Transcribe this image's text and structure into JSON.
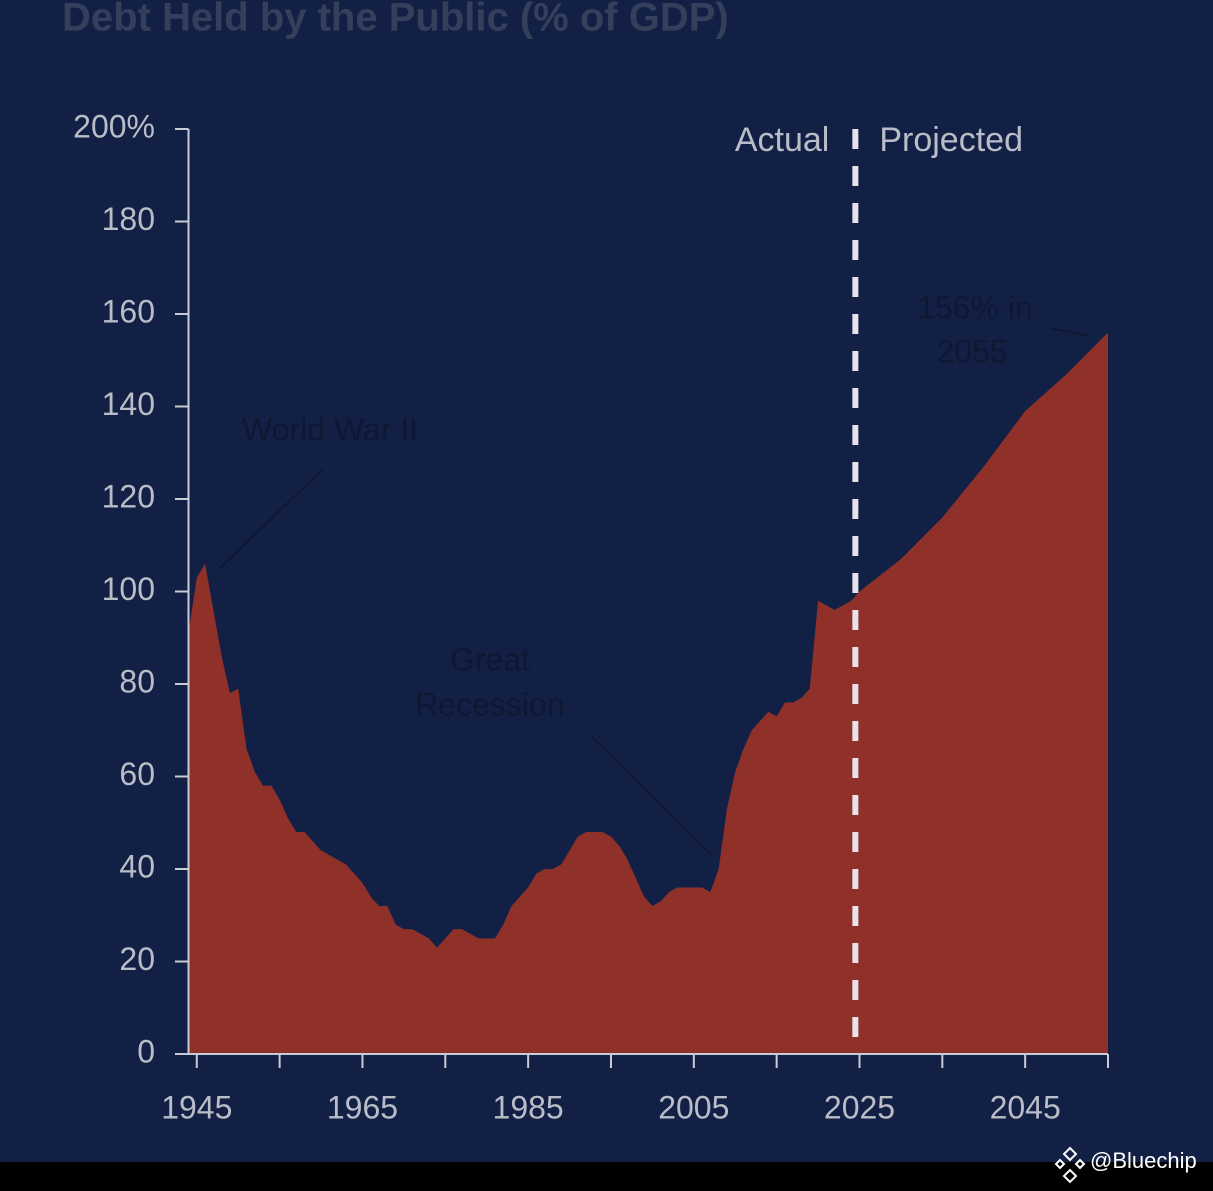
{
  "chart_data": {
    "type": "area",
    "title": "Debt Held by the Public (% of GDP)",
    "x": [
      1944,
      1945,
      1946,
      1947,
      1948,
      1949,
      1950,
      1951,
      1952,
      1953,
      1954,
      1955,
      1956,
      1957,
      1958,
      1959,
      1960,
      1961,
      1962,
      1963,
      1964,
      1965,
      1966,
      1967,
      1968,
      1969,
      1970,
      1971,
      1972,
      1973,
      1974,
      1975,
      1976,
      1977,
      1978,
      1979,
      1980,
      1981,
      1982,
      1983,
      1984,
      1985,
      1986,
      1987,
      1988,
      1989,
      1990,
      1991,
      1992,
      1993,
      1994,
      1995,
      1996,
      1997,
      1998,
      1999,
      2000,
      2001,
      2002,
      2003,
      2004,
      2005,
      2006,
      2007,
      2008,
      2009,
      2010,
      2011,
      2012,
      2013,
      2014,
      2015,
      2016,
      2017,
      2018,
      2019,
      2020,
      2021,
      2022,
      2023,
      2024,
      2025,
      2030,
      2035,
      2040,
      2045,
      2050,
      2055
    ],
    "values": [
      91,
      103,
      106,
      96,
      86,
      78,
      79,
      66,
      61,
      58,
      58,
      55,
      51,
      48,
      48,
      46,
      44,
      43,
      42,
      41,
      39,
      37,
      34,
      32,
      32,
      28,
      27,
      27,
      26,
      25,
      23,
      25,
      27,
      27,
      26,
      25,
      25,
      25,
      28,
      32,
      34,
      36,
      39,
      40,
      40,
      41,
      44,
      47,
      48,
      48,
      48,
      47,
      45,
      42,
      38,
      34,
      32,
      33,
      35,
      36,
      36,
      36,
      36,
      35,
      40,
      53,
      61,
      66,
      70,
      72,
      74,
      73,
      76,
      76,
      77,
      79,
      98,
      97,
      96,
      97,
      98,
      100,
      107,
      116,
      127,
      139,
      147,
      156
    ],
    "color": "#8f3129",
    "xlim": [
      1944,
      2055
    ],
    "ylim": [
      0,
      200
    ],
    "xticks": [
      1945,
      1965,
      1985,
      2005,
      2025,
      2045
    ],
    "xminor_ticks": [
      1955,
      1975,
      1995,
      2015,
      2035,
      2055
    ],
    "yticks": [
      0,
      20,
      40,
      60,
      80,
      100,
      120,
      140,
      160,
      180,
      {
        "value": 200,
        "label": "200%"
      }
    ],
    "divider": 2024.5,
    "divider_labels": [
      "Actual",
      "Projected"
    ],
    "annotations": [
      "World War II",
      "Great",
      "Recession",
      "156% in",
      "2055"
    ],
    "watermark": "@Bluechip"
  }
}
